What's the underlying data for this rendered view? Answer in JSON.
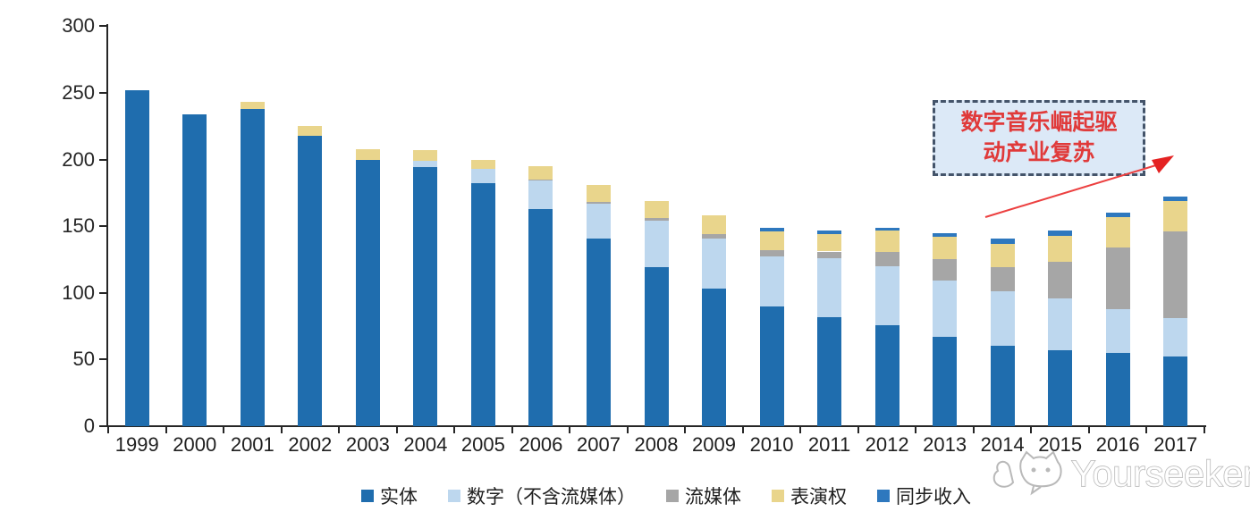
{
  "watermark": {
    "text": "Yourseeker"
  },
  "annotation": {
    "line1": "数字音乐崛起驱",
    "line2": "动产业复苏",
    "text_color": "#E03A3A",
    "border_color": "#44546A",
    "fill_color": "#DCE9F7",
    "arrow_color": "#EC4040"
  },
  "axis": {
    "yticks": [
      "0",
      "50",
      "100",
      "150",
      "200",
      "250",
      "300"
    ],
    "axis_color": "#262626"
  },
  "chart_data": {
    "type": "bar",
    "stacked": true,
    "title": "",
    "xlabel": "",
    "ylabel": "",
    "ylim": [
      0,
      300
    ],
    "ytick_interval": 50,
    "grid": false,
    "legend_position": "bottom",
    "categories": [
      "1999",
      "2000",
      "2001",
      "2002",
      "2003",
      "2004",
      "2005",
      "2006",
      "2007",
      "2008",
      "2009",
      "2010",
      "2011",
      "2012",
      "2013",
      "2014",
      "2015",
      "2016",
      "2017"
    ],
    "series": [
      {
        "key": "physical",
        "name": "实体",
        "color": "#1F6DAE",
        "values": [
          252,
          234,
          238,
          218,
          200,
          194,
          182,
          163,
          141,
          119,
          103,
          90,
          82,
          76,
          67,
          60,
          57,
          55,
          52
        ]
      },
      {
        "key": "digital",
        "name": "数字（不含流媒体）",
        "color": "#BDD7EE",
        "values": [
          0,
          0,
          0,
          0,
          0,
          5,
          11,
          21,
          26,
          35,
          38,
          37,
          44,
          44,
          42,
          41,
          39,
          33,
          29
        ]
      },
      {
        "key": "streaming",
        "name": "流媒体",
        "color": "#A6A6A6",
        "values": [
          0,
          0,
          0,
          0,
          0,
          0,
          0,
          1,
          1,
          2,
          3,
          5,
          5,
          11,
          16,
          18,
          27,
          46,
          65
        ]
      },
      {
        "key": "performance",
        "name": "表演权",
        "color": "#E9D58C",
        "values": [
          0,
          0,
          5,
          7,
          8,
          8,
          7,
          10,
          13,
          13,
          14,
          14,
          13,
          16,
          17,
          18,
          20,
          23,
          23
        ]
      },
      {
        "key": "sync",
        "name": "同步收入",
        "color": "#2E78BE",
        "values": [
          0,
          0,
          0,
          0,
          0,
          0,
          0,
          0,
          0,
          0,
          0,
          3,
          3,
          2,
          3,
          4,
          4,
          3,
          3
        ]
      }
    ]
  }
}
